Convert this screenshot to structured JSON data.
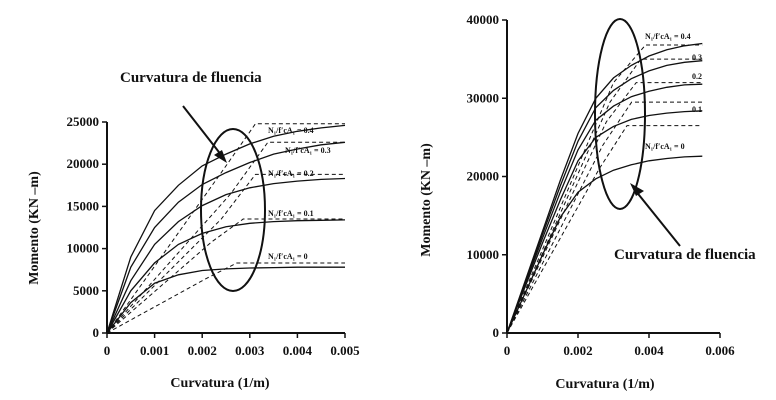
{
  "chart_data": [
    {
      "type": "line",
      "title": "",
      "xlabel": "Curvatura (1/m)",
      "ylabel": "Momento (KN –m)",
      "xlim": [
        0,
        0.005
      ],
      "ylim": [
        0,
        25000
      ],
      "x_ticks": [
        "0",
        "0.001",
        "0.002",
        "0.003",
        "0.004",
        "0.005"
      ],
      "y_ticks": [
        "0",
        "5000",
        "10000",
        "15000",
        "20000",
        "25000"
      ],
      "annotation": "Curvatura de fluencia",
      "series": [
        {
          "name": "N₁/f′cA₁ = 0.4",
          "x": [
            0,
            0.0005,
            0.001,
            0.0015,
            0.002,
            0.0025,
            0.003,
            0.0035,
            0.004,
            0.0045,
            0.005
          ],
          "y": [
            0,
            9000,
            14500,
            17500,
            19800,
            21200,
            22400,
            23300,
            23900,
            24300,
            24600
          ]
        },
        {
          "name": "N₁/f′cA₁ = 0.3",
          "x": [
            0,
            0.0005,
            0.001,
            0.0015,
            0.002,
            0.0025,
            0.003,
            0.0035,
            0.004,
            0.0045,
            0.005
          ],
          "y": [
            0,
            7800,
            12500,
            15500,
            17600,
            19000,
            20200,
            21200,
            21800,
            22300,
            22600
          ]
        },
        {
          "name": "N₁/f′cA₁ = 0.2",
          "x": [
            0,
            0.0005,
            0.001,
            0.0015,
            0.002,
            0.0025,
            0.003,
            0.0035,
            0.004,
            0.0045,
            0.005
          ],
          "y": [
            0,
            6200,
            10500,
            13200,
            15100,
            16400,
            17200,
            17700,
            18000,
            18200,
            18300
          ]
        },
        {
          "name": "N₁/f′cA₁ = 0.1",
          "x": [
            0,
            0.0005,
            0.001,
            0.0015,
            0.002,
            0.0025,
            0.003,
            0.0035,
            0.004,
            0.0045,
            0.005
          ],
          "y": [
            0,
            5000,
            8300,
            10500,
            11800,
            12600,
            13000,
            13200,
            13300,
            13350,
            13400
          ]
        },
        {
          "name": "N₁/f′cA₁ = 0",
          "x": [
            0,
            0.0005,
            0.001,
            0.0015,
            0.002,
            0.0025,
            0.003,
            0.0035,
            0.004,
            0.0045,
            0.005
          ],
          "y": [
            0,
            3600,
            5900,
            6900,
            7400,
            7600,
            7700,
            7750,
            7800,
            7800,
            7800
          ]
        }
      ],
      "idealized": [
        {
          "yield_x": 0.0024,
          "yield_y": 19000,
          "plateau_y": 24800
        },
        {
          "yield_x": 0.0026,
          "yield_y": 16500,
          "plateau_y": 22600
        },
        {
          "yield_x": 0.0024,
          "yield_y": 13500,
          "plateau_y": 18800
        },
        {
          "yield_x": 0.0022,
          "yield_y": 10800,
          "plateau_y": 13500
        },
        {
          "yield_x": 0.0021,
          "yield_y": 6500,
          "plateau_y": 8300
        }
      ]
    },
    {
      "type": "line",
      "title": "",
      "xlabel": "Curvatura (1/m)",
      "ylabel": "Momento (KN –m)",
      "xlim": [
        0,
        0.006
      ],
      "ylim": [
        0,
        40000
      ],
      "x_ticks": [
        "0",
        "0.002",
        "0.004",
        "0.006"
      ],
      "y_ticks": [
        "0",
        "10000",
        "20000",
        "30000",
        "40000"
      ],
      "annotation": "Curvatura de fluencia",
      "series": [
        {
          "name": "N₁/f′cA₁ = 0.4",
          "x": [
            0,
            0.0005,
            0.001,
            0.0015,
            0.002,
            0.0025,
            0.003,
            0.0035,
            0.004,
            0.0045,
            0.005,
            0.0055
          ],
          "y": [
            0,
            6500,
            13000,
            19500,
            25500,
            30000,
            32600,
            34200,
            35400,
            36200,
            36700,
            37000
          ]
        },
        {
          "name": "0.3",
          "x": [
            0,
            0.0005,
            0.001,
            0.0015,
            0.002,
            0.0025,
            0.003,
            0.0035,
            0.004,
            0.0045,
            0.005,
            0.0055
          ],
          "y": [
            0,
            6300,
            12600,
            18800,
            24500,
            28800,
            31000,
            32500,
            33500,
            34200,
            34600,
            34800
          ]
        },
        {
          "name": "0.2",
          "x": [
            0,
            0.0005,
            0.001,
            0.0015,
            0.002,
            0.0025,
            0.003,
            0.0035,
            0.004,
            0.0045,
            0.005,
            0.0055
          ],
          "y": [
            0,
            6100,
            12100,
            18000,
            23400,
            27200,
            29000,
            30200,
            30900,
            31400,
            31700,
            31800
          ]
        },
        {
          "name": "0.1",
          "x": [
            0,
            0.0005,
            0.001,
            0.0015,
            0.002,
            0.0025,
            0.003,
            0.0035,
            0.004,
            0.0045,
            0.005,
            0.0055
          ],
          "y": [
            0,
            5800,
            11500,
            17000,
            22000,
            25000,
            26400,
            27300,
            27800,
            28100,
            28300,
            28400
          ]
        },
        {
          "name": "N₁/f′cA₁ = 0",
          "x": [
            0,
            0.0005,
            0.001,
            0.0015,
            0.002,
            0.0025,
            0.003,
            0.0035,
            0.004,
            0.0045,
            0.005,
            0.0055
          ],
          "y": [
            0,
            5000,
            10000,
            14800,
            18000,
            19700,
            20800,
            21500,
            22000,
            22300,
            22500,
            22600
          ]
        }
      ],
      "idealized": [
        {
          "yield_x": 0.003,
          "yield_y": 32000,
          "plateau_y": 36800
        },
        {
          "yield_x": 0.0029,
          "yield_y": 29500,
          "plateau_y": 35000
        },
        {
          "yield_x": 0.0028,
          "yield_y": 27000,
          "plateau_y": 32000
        },
        {
          "yield_x": 0.0027,
          "yield_y": 24000,
          "plateau_y": 29500
        },
        {
          "yield_x": 0.0026,
          "yield_y": 21000,
          "plateau_y": 26500
        }
      ]
    }
  ]
}
